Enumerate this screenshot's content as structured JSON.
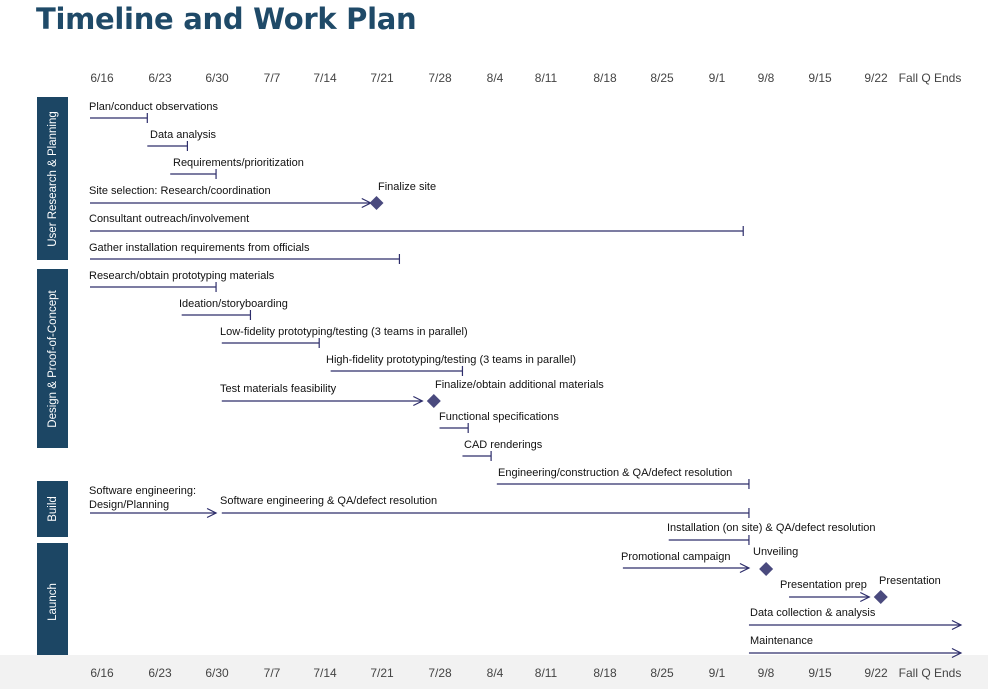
{
  "title": "Timeline and Work Plan",
  "date_labels": [
    "6/16",
    "6/23",
    "6/30",
    "7/7",
    "7/14",
    "7/21",
    "7/28",
    "8/4",
    "8/11",
    "8/18",
    "8/25",
    "9/1",
    "9/8",
    "9/15",
    "9/22",
    "Fall Q Ends"
  ],
  "phases": [
    {
      "name": "User Research & Planning"
    },
    {
      "name": "Design & Proof-of-Concept"
    },
    {
      "name": "Build"
    },
    {
      "name": "Launch"
    }
  ],
  "colors": {
    "title": "#1f4a68",
    "phase_fill": "#1c4664",
    "line": "#2e2e6b",
    "milestone": "#4a4a7e"
  },
  "tasks": [
    {
      "label": "Plan/conduct observations",
      "start": 0,
      "end": 1.0,
      "end_style": "tick"
    },
    {
      "label": "Data analysis",
      "start": 1.0,
      "end": 1.7,
      "end_style": "tick"
    },
    {
      "label": "Requirements/prioritization",
      "start": 1.4,
      "end": 2.2,
      "end_style": "tick"
    },
    {
      "label": "Site selection: Research/coordination",
      "start": 0,
      "end": 4.9,
      "end_style": "arrow"
    },
    {
      "label": "Consultant outreach/involvement",
      "start": 0,
      "end": 11.4,
      "end_style": "tick"
    },
    {
      "label": "Gather installation requirements from officials",
      "start": 0,
      "end": 5.4,
      "end_style": "tick"
    },
    {
      "label": "Research/obtain prototyping materials",
      "start": 0,
      "end": 2.2,
      "end_style": "tick"
    },
    {
      "label": "Ideation/storyboarding",
      "start": 1.6,
      "end": 2.8,
      "end_style": "tick"
    },
    {
      "label": "Low-fidelity prototyping/testing (3 teams in parallel)",
      "start": 2.3,
      "end": 4.0,
      "end_style": "tick"
    },
    {
      "label": "High-fidelity prototyping/testing (3 teams in parallel)",
      "start": 4.2,
      "end": 6.5,
      "end_style": "tick"
    },
    {
      "label": "Test materials feasibility",
      "start": 2.3,
      "end": 5.8,
      "end_style": "arrow"
    },
    {
      "label": "Functional specifications",
      "start": 6.1,
      "end": 6.6,
      "end_style": "tick"
    },
    {
      "label": "CAD renderings",
      "start": 6.5,
      "end": 7.0,
      "end_style": "tick"
    },
    {
      "label": "Engineering/construction & QA/defect resolution",
      "start": 7.1,
      "end": 11.5,
      "end_style": "tick"
    },
    {
      "label": "Software engineering: Design/Planning",
      "start": 0,
      "end": 2.2,
      "end_style": "arrow"
    },
    {
      "label": "Software engineering & QA/defect resolution",
      "start": 2.3,
      "end": 11.5,
      "end_style": "tick"
    },
    {
      "label": "Installation (on site) & QA/defect resolution",
      "start": 10.1,
      "end": 11.5,
      "end_style": "tick"
    },
    {
      "label": "Promotional campaign",
      "start": 9.3,
      "end": 11.5,
      "end_style": "arrow"
    },
    {
      "label": "Presentation prep",
      "start": 12.2,
      "end": 13.6,
      "end_style": "arrow"
    },
    {
      "label": "Data collection & analysis",
      "start": 11.5,
      "end": 15.2,
      "end_style": "arrow"
    },
    {
      "label": "Maintenance",
      "start": 11.5,
      "end": 15.2,
      "end_style": "arrow"
    }
  ],
  "milestones": [
    {
      "label": "Finalize site",
      "at": 5.0
    },
    {
      "label": "Finalize/obtain additional materials",
      "at": 6.0
    },
    {
      "label": "Unveiling",
      "at": 11.8
    },
    {
      "label": "Presentation",
      "at": 13.8
    }
  ]
}
